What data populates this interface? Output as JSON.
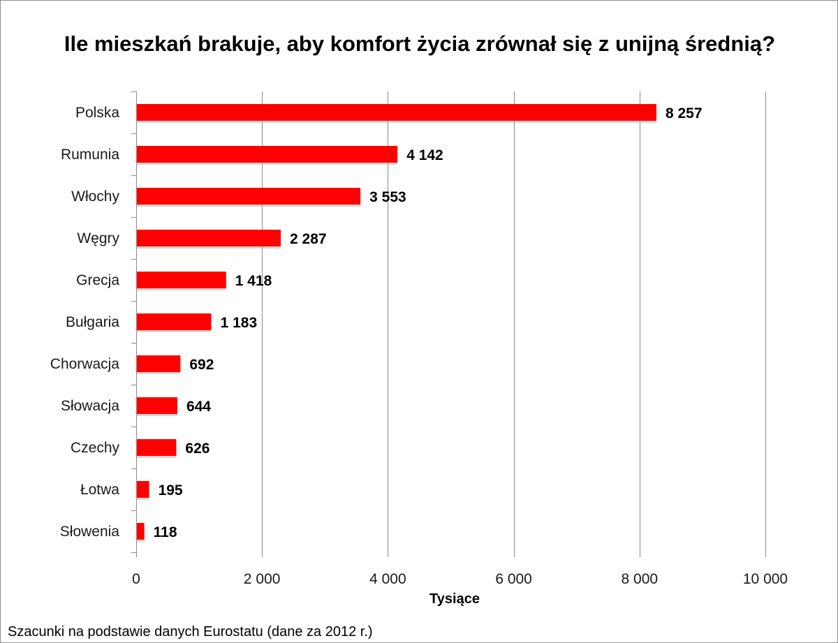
{
  "chart_data": {
    "type": "bar",
    "orientation": "horizontal",
    "title": "Ile mieszkań brakuje, aby komfort życia zrównał się z unijną średnią?",
    "xlabel": "Tysiące",
    "ylabel": "",
    "xlim": [
      0,
      10000
    ],
    "x_ticks": [
      0,
      2000,
      4000,
      6000,
      8000,
      10000
    ],
    "x_tick_labels": [
      "0",
      "2 000",
      "4 000",
      "6 000",
      "8 000",
      "10 000"
    ],
    "grid": "vertical",
    "legend": "none",
    "bar_color": "#ff0000",
    "categories": [
      "Polska",
      "Rumunia",
      "Włochy",
      "Węgry",
      "Grecja",
      "Bułgaria",
      "Chorwacja",
      "Słowacja",
      "Czechy",
      "Łotwa",
      "Słowenia"
    ],
    "values": [
      8257,
      4142,
      3553,
      2287,
      1418,
      1183,
      692,
      644,
      626,
      195,
      118
    ],
    "value_labels": [
      "8 257",
      "4 142",
      "3 553",
      "2 287",
      "1 418",
      "1 183",
      "692",
      "644",
      "626",
      "195",
      "118"
    ]
  },
  "footer": {
    "source_note": "Szacunki na podstawie danych Eurostatu (dane za 2012 r.)"
  }
}
